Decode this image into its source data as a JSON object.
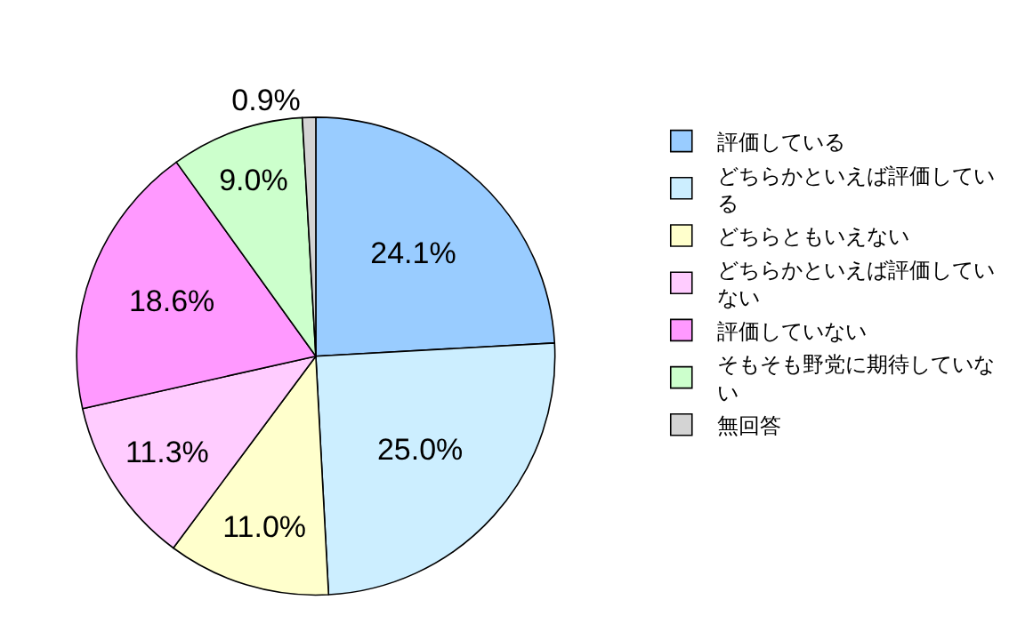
{
  "chart_data": {
    "type": "pie",
    "categories": [
      "評価している",
      "どちらかといえば評価している",
      "どちらともいえない",
      "どちらかといえば評価していない",
      "評価していない",
      "そもそも野党に期待していない",
      "無回答"
    ],
    "values": [
      24.1,
      25.0,
      11.0,
      11.3,
      18.6,
      9.0,
      0.9
    ],
    "colors": [
      "#99ccff",
      "#cceeff",
      "#ffffcc",
      "#ffccff",
      "#ff99ff",
      "#ccffcc",
      "#d4d4d4"
    ],
    "value_labels": [
      "24.1%",
      "25.0%",
      "11.0%",
      "11.3%",
      "18.6%",
      "9.0%",
      "0.9%"
    ],
    "legend": "right"
  }
}
